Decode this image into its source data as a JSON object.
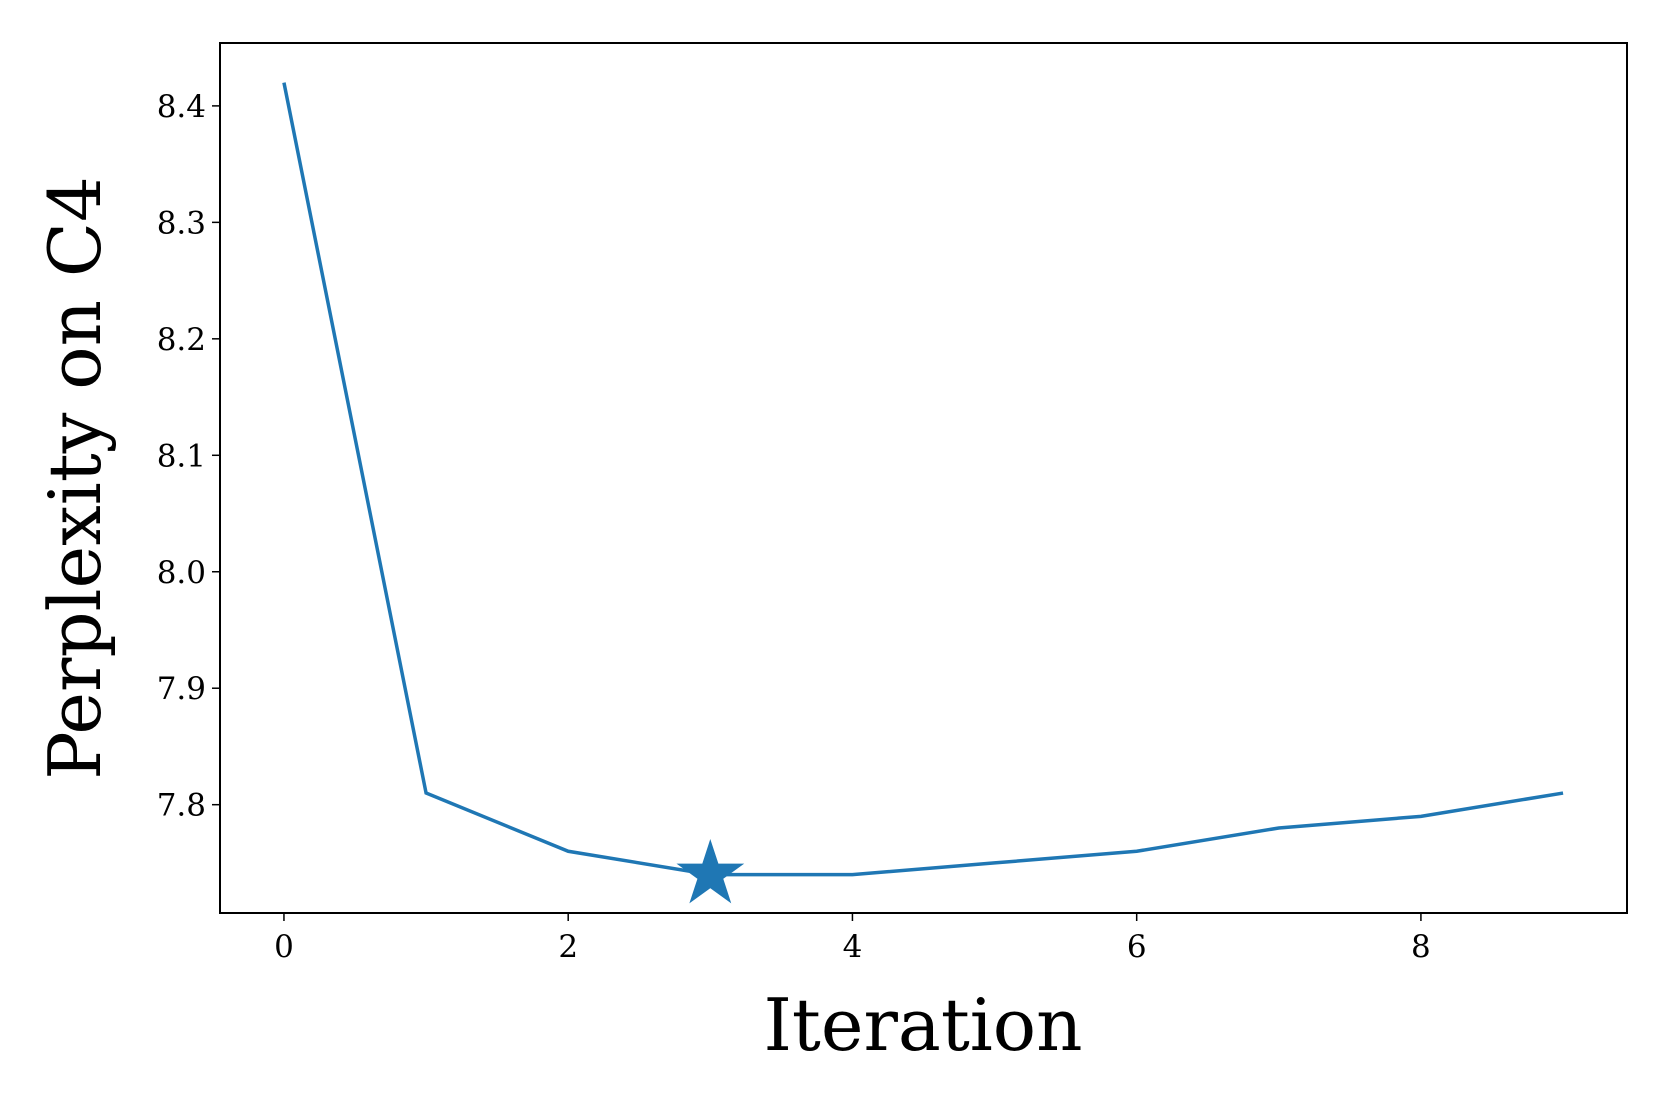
{
  "chart_data": {
    "type": "line",
    "xlabel": "Iteration",
    "ylabel": "Perplexity on C4",
    "x": [
      0,
      1,
      2,
      3,
      4,
      5,
      6,
      7,
      8,
      9
    ],
    "values": [
      8.42,
      7.81,
      7.76,
      7.74,
      7.74,
      7.75,
      7.76,
      7.78,
      7.79,
      7.81
    ],
    "color": "#1f77b4",
    "highlight": {
      "x": 3,
      "value": 7.74,
      "marker": "star"
    },
    "xlim": [
      -0.45,
      9.45
    ],
    "ylim": [
      7.707,
      8.454
    ],
    "xticks": [
      0,
      2,
      4,
      6,
      8
    ],
    "yticks": [
      7.8,
      7.9,
      {
        "value": 8,
        "label": "8.0"
      },
      8.1,
      8.2,
      8.3,
      8.4
    ],
    "grid": false
  }
}
